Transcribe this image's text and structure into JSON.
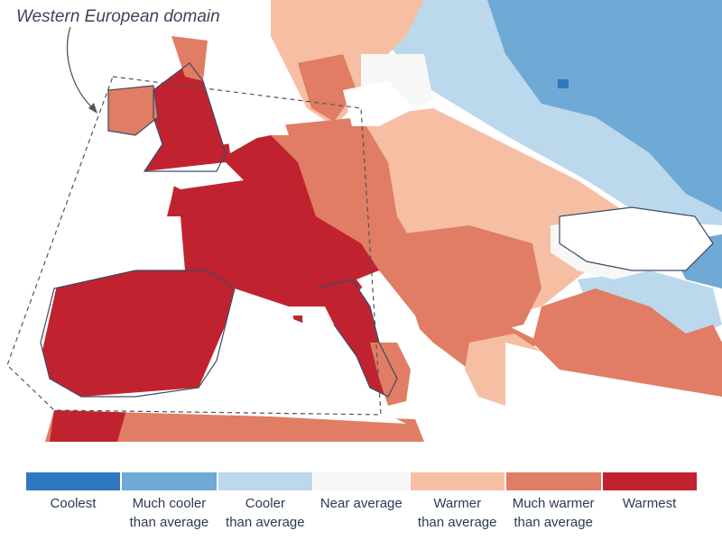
{
  "map": {
    "annotation": "Western European domain",
    "colors": {
      "coolest": "#2f78bf",
      "much_cooler": "#6fa9d6",
      "cooler": "#bcd8ec",
      "near": "#f7f7f7",
      "warmer": "#f6bfa4",
      "much_warmer": "#e07d64",
      "warmest": "#c0232f",
      "coast": "#3d4a66",
      "sea": "#ffffff"
    }
  },
  "legend": {
    "items": [
      {
        "label": "Coolest",
        "color": "#2f78bf"
      },
      {
        "label": "Much cooler\nthan average",
        "color": "#6fa9d6"
      },
      {
        "label": "Cooler\nthan average",
        "color": "#bcd8ec"
      },
      {
        "label": "Near average",
        "color": "#f7f7f7"
      },
      {
        "label": "Warmer\nthan average",
        "color": "#f6bfa4"
      },
      {
        "label": "Much warmer\nthan average",
        "color": "#e07d64"
      },
      {
        "label": "Warmest",
        "color": "#c0232f"
      }
    ]
  }
}
